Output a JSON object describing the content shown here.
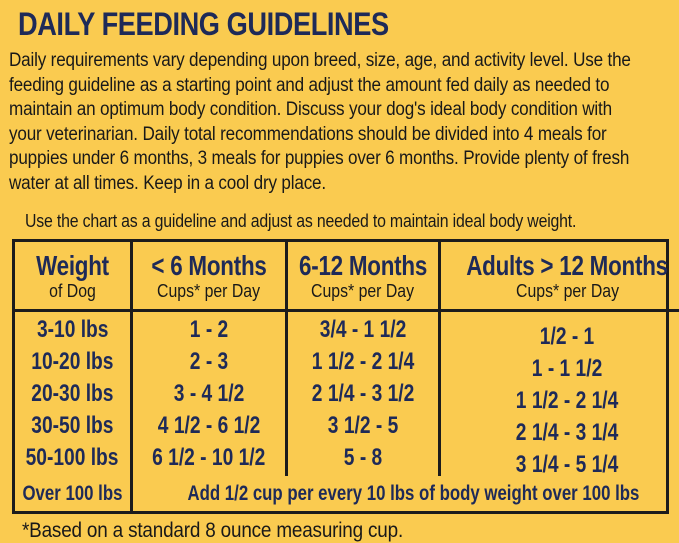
{
  "colors": {
    "background": "#FACB50",
    "navy_accent": "#1E2A58",
    "body_text": "#191919",
    "table_border": "#1C1C1C"
  },
  "title": "DAILY FEEDING GUIDELINES",
  "intro_lines": [
    "Daily requirements vary depending upon breed, size, age, and activity level. Use the",
    "feeding guideline as a starting point and adjust the amount fed daily as needed to",
    "maintain an optimum body condition. Discuss your dog's ideal body condition with",
    "your veterinarian. Daily total recommendations should be divided into 4 meals for",
    "puppies under 6 months, 3 meals for puppies over 6 months. Provide plenty of fresh",
    "water at all times. Keep in a cool dry place."
  ],
  "chart_note": "Use the chart as a guideline and adjust as needed to maintain ideal body weight.",
  "table": {
    "columns": [
      {
        "main": "Weight",
        "sub": "of Dog"
      },
      {
        "main": "< 6 Months",
        "sub": "Cups* per Day"
      },
      {
        "main": "6-12 Months",
        "sub": "Cups* per Day"
      },
      {
        "main": "Adults > 12 Months",
        "sub": "Cups* per Day"
      }
    ],
    "rows": [
      {
        "weight": "3-10 lbs",
        "under_6_months": "1 - 2",
        "months_6_12": "3/4 - 1 1/2",
        "adults": "1/2 - 1"
      },
      {
        "weight": "10-20 lbs",
        "under_6_months": "2 - 3",
        "months_6_12": "1 1/2 - 2 1/4",
        "adults": "1 - 1 1/2"
      },
      {
        "weight": "20-30 lbs",
        "under_6_months": "3 - 4 1/2",
        "months_6_12": "2 1/4 - 3 1/2",
        "adults": "1 1/2 - 2 1/4"
      },
      {
        "weight": "30-50 lbs",
        "under_6_months": "4 1/2 - 6 1/2",
        "months_6_12": "3 1/2 - 5",
        "adults": "2 1/4 - 3 1/4"
      },
      {
        "weight": "50-100 lbs",
        "under_6_months": "6 1/2 - 10 1/2",
        "months_6_12": "5 - 8",
        "adults": "3 1/4 - 5 1/4"
      }
    ],
    "over_100_row": {
      "weight": "Over 100 lbs",
      "note": "Add 1/2 cup per every 10 lbs of body weight over 100 lbs"
    }
  },
  "footnote": "*Based on a standard 8 ounce measuring cup."
}
